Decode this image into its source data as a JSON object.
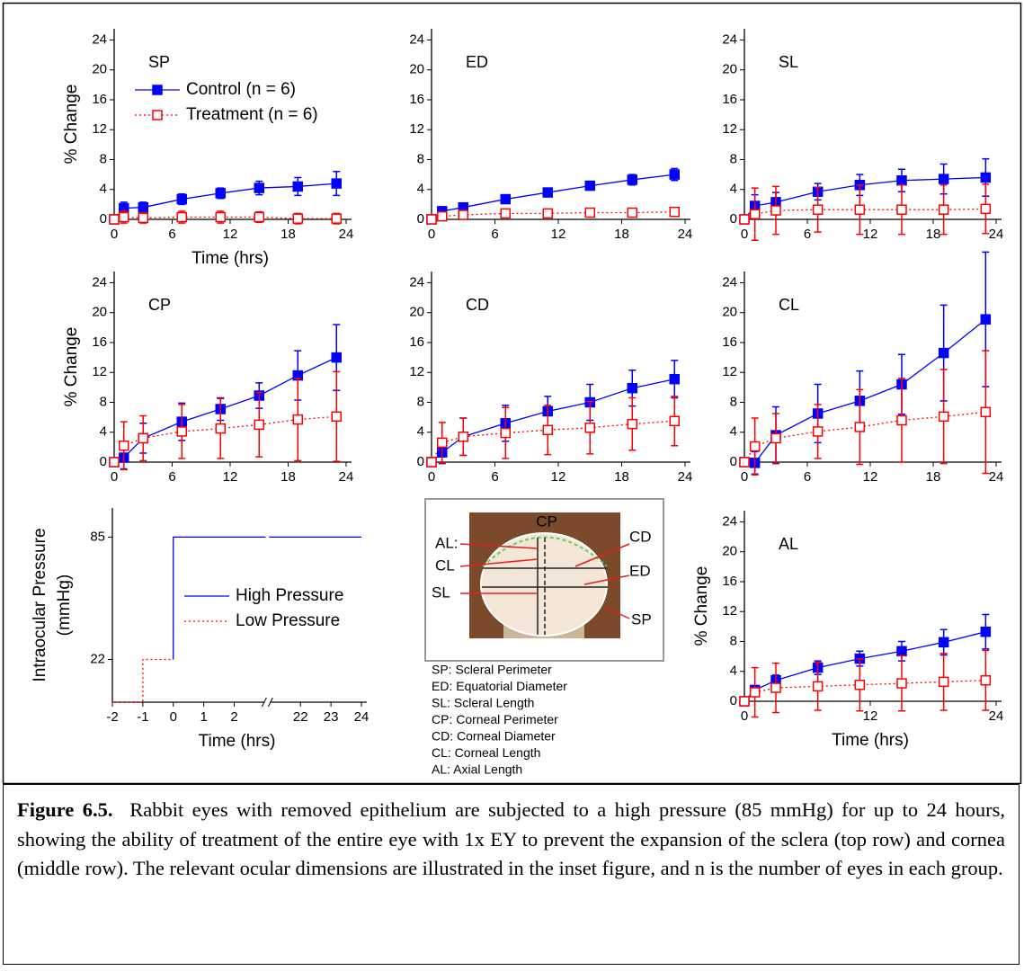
{
  "chart_data": [
    {
      "type": "line",
      "title": "SP",
      "xlabel": "Time (hrs)",
      "ylabel": "% Change",
      "legend": "upper left",
      "x": [
        0,
        1,
        3,
        7,
        11,
        15,
        19,
        23
      ],
      "xlim": [
        0,
        24
      ],
      "xticks": [
        0,
        6,
        12,
        18,
        24
      ],
      "ylim": [
        0,
        25.5
      ],
      "yticks": [
        0,
        4,
        8,
        12,
        16,
        20,
        24
      ],
      "series": [
        {
          "name": "Control (n = 6)",
          "color": "#0000ff",
          "marker": "filled-square",
          "linestyle": "solid",
          "values": [
            0,
            1.5,
            1.6,
            2.7,
            3.5,
            4.2,
            4.4,
            4.8
          ],
          "errors": [
            0,
            0.8,
            0.7,
            0.7,
            0.7,
            0.9,
            1.2,
            1.6
          ]
        },
        {
          "name": "Treatment (n = 6)",
          "color": "#ff0000",
          "marker": "open-square",
          "linestyle": "dotted",
          "values": [
            0,
            0.3,
            0.2,
            0.3,
            0.3,
            0.3,
            0.1,
            0.1
          ],
          "errors": [
            0,
            0.8,
            0.7,
            0.8,
            0.8,
            0.7,
            0.7,
            0.7
          ]
        }
      ]
    },
    {
      "type": "line",
      "title": "ED",
      "x": [
        0,
        1,
        3,
        7,
        11,
        15,
        19,
        23
      ],
      "xlim": [
        0,
        24
      ],
      "xticks": [
        0,
        6,
        12,
        18,
        24
      ],
      "ylim": [
        0,
        25.5
      ],
      "yticks": [
        0,
        4,
        8,
        12,
        16,
        20,
        24
      ],
      "series": [
        {
          "color": "#0000ff",
          "marker": "filled-square",
          "linestyle": "solid",
          "values": [
            0,
            1.1,
            1.6,
            2.7,
            3.6,
            4.5,
            5.3,
            6.0
          ],
          "errors": [
            0,
            0.5,
            0.6,
            0.5,
            0.4,
            0.4,
            0.7,
            0.8
          ]
        },
        {
          "color": "#ff0000",
          "marker": "open-square",
          "linestyle": "dotted",
          "values": [
            0,
            0.4,
            0.6,
            0.8,
            0.8,
            0.9,
            0.9,
            1.0
          ],
          "errors": [
            0,
            0.3,
            0.3,
            0.3,
            0.3,
            0.3,
            0.3,
            0.3
          ]
        }
      ]
    },
    {
      "type": "line",
      "title": "SL",
      "x": [
        0,
        1,
        3,
        7,
        11,
        15,
        19,
        23
      ],
      "xlim": [
        0,
        24
      ],
      "xticks": [
        0,
        6,
        12,
        18,
        24
      ],
      "ylim": [
        0,
        25.5
      ],
      "yticks": [
        0,
        4,
        8,
        12,
        16,
        20,
        24
      ],
      "series": [
        {
          "color": "#0000ff",
          "marker": "filled-square",
          "linestyle": "solid",
          "values": [
            0,
            1.8,
            2.3,
            3.7,
            4.6,
            5.2,
            5.4,
            5.6
          ],
          "errors": [
            0,
            1.5,
            1.3,
            1.1,
            1.4,
            1.5,
            2.0,
            2.5
          ]
        },
        {
          "color": "#ff0000",
          "marker": "open-square",
          "linestyle": "dotted",
          "values": [
            0,
            0.7,
            1.2,
            1.3,
            1.3,
            1.3,
            1.3,
            1.4
          ],
          "errors": [
            0,
            3.5,
            3.2,
            3.0,
            3.3,
            3.3,
            3.3,
            3.3
          ]
        }
      ]
    },
    {
      "type": "line",
      "title": "CP",
      "ylabel": "% Change",
      "x": [
        0,
        1,
        3,
        7,
        11,
        15,
        19,
        23
      ],
      "xlim": [
        0,
        24
      ],
      "xticks": [
        0,
        6,
        12,
        18,
        24
      ],
      "ylim": [
        0,
        25.5
      ],
      "yticks": [
        0,
        4,
        8,
        12,
        16,
        20,
        24
      ],
      "series": [
        {
          "color": "#0000ff",
          "marker": "filled-square",
          "linestyle": "solid",
          "values": [
            0,
            0.6,
            3.2,
            5.4,
            7.1,
            8.9,
            11.6,
            14.0
          ],
          "errors": [
            0,
            1.5,
            2.0,
            2.5,
            1.5,
            1.7,
            3.3,
            4.4
          ]
        },
        {
          "color": "#ff0000",
          "marker": "open-square",
          "linestyle": "dotted",
          "values": [
            0,
            2.2,
            3.2,
            4.1,
            4.5,
            5.0,
            5.7,
            6.1
          ],
          "errors": [
            0,
            3.2,
            3.0,
            3.6,
            4.0,
            4.3,
            5.5,
            6.0
          ]
        }
      ]
    },
    {
      "type": "line",
      "title": "CD",
      "x": [
        0,
        1,
        3,
        7,
        11,
        15,
        19,
        23
      ],
      "xlim": [
        0,
        24
      ],
      "xticks": [
        0,
        6,
        12,
        18,
        24
      ],
      "ylim": [
        0,
        25.5
      ],
      "yticks": [
        0,
        4,
        8,
        12,
        16,
        20,
        24
      ],
      "series": [
        {
          "color": "#0000ff",
          "marker": "filled-square",
          "linestyle": "solid",
          "values": [
            0,
            1.3,
            3.4,
            5.2,
            6.8,
            8.0,
            9.9,
            11.1
          ],
          "errors": [
            0,
            1.5,
            2.5,
            2.4,
            2.0,
            2.4,
            2.4,
            2.5
          ]
        },
        {
          "color": "#ff0000",
          "marker": "open-square",
          "linestyle": "dotted",
          "values": [
            0,
            2.6,
            3.4,
            3.9,
            4.3,
            4.6,
            5.1,
            5.5
          ],
          "errors": [
            0,
            2.7,
            2.5,
            3.4,
            3.3,
            3.5,
            3.5,
            3.3
          ]
        }
      ]
    },
    {
      "type": "line",
      "title": "CL",
      "x": [
        0,
        1,
        3,
        7,
        11,
        15,
        19,
        23
      ],
      "xlim": [
        0,
        24
      ],
      "xticks": [
        0,
        6,
        12,
        18,
        24
      ],
      "ylim": [
        0,
        25.5
      ],
      "yticks": [
        0,
        4,
        8,
        12,
        16,
        20,
        24
      ],
      "series": [
        {
          "color": "#0000ff",
          "marker": "filled-square",
          "linestyle": "solid",
          "values": [
            0,
            -0.1,
            3.6,
            6.5,
            8.2,
            10.4,
            14.6,
            19.1
          ],
          "errors": [
            0,
            1.5,
            3.8,
            3.9,
            4.0,
            4.0,
            6.4,
            9.0
          ]
        },
        {
          "color": "#ff0000",
          "marker": "open-square",
          "linestyle": "dotted",
          "values": [
            0,
            2.1,
            3.2,
            4.1,
            4.7,
            5.6,
            6.1,
            6.7
          ],
          "errors": [
            0,
            3.8,
            3.3,
            3.6,
            5.0,
            5.6,
            6.3,
            8.2
          ]
        }
      ]
    },
    {
      "type": "line",
      "xlabel": "Time (hrs)",
      "ylabel": [
        "Intraocular Pressure",
        "(mmHg)"
      ],
      "legend": "center",
      "xlim": [
        -2,
        24
      ],
      "xbreak": [
        3,
        21
      ],
      "xticks": [
        -2,
        -1,
        0,
        1,
        2,
        22,
        23,
        24
      ],
      "ylim": [
        0,
        100
      ],
      "yticks": [
        22,
        85
      ],
      "series": [
        {
          "name": "High Pressure",
          "color": "#0000ff",
          "linestyle": "solid",
          "x": [
            0,
            0,
            24
          ],
          "values": [
            22,
            85,
            85
          ]
        },
        {
          "name": "Low Pressure",
          "color": "#ff0000",
          "linestyle": "dotted",
          "x": [
            -2,
            -1,
            -1,
            0
          ],
          "values": [
            0,
            0,
            22,
            22
          ]
        }
      ]
    },
    {
      "type": "line",
      "title": "AL",
      "xlabel": "Time (hrs)",
      "ylabel": "% Change",
      "x": [
        0,
        1,
        3,
        7,
        11,
        15,
        19,
        23
      ],
      "xlim": [
        0,
        24
      ],
      "xticks": [
        0,
        12,
        24
      ],
      "ylim": [
        0,
        25.5
      ],
      "yticks": [
        0,
        4,
        8,
        12,
        16,
        20,
        24
      ],
      "series": [
        {
          "color": "#0000ff",
          "marker": "filled-square",
          "linestyle": "solid",
          "values": [
            0,
            1.5,
            2.8,
            4.5,
            5.7,
            6.7,
            7.9,
            9.3
          ],
          "errors": [
            0,
            0.6,
            0.7,
            0.9,
            1.0,
            1.3,
            1.7,
            2.3
          ]
        },
        {
          "color": "#ff0000",
          "marker": "open-square",
          "linestyle": "dotted",
          "values": [
            0,
            1.2,
            1.8,
            2.0,
            2.2,
            2.4,
            2.6,
            2.8
          ],
          "errors": [
            0,
            3.3,
            3.3,
            3.2,
            3.5,
            3.7,
            3.8,
            4.0
          ]
        }
      ]
    }
  ],
  "inset": {
    "labels": [
      "CP",
      "AL:",
      "CL",
      "SL",
      "CD",
      "ED",
      "SP"
    ],
    "legend": [
      "SP: Scleral Perimeter",
      "ED: Equatorial Diameter",
      "SL: Scleral Length",
      "CP: Corneal Perimeter",
      "CD: Corneal Diameter",
      "CL: Corneal Length",
      "AL: Axial Length"
    ]
  },
  "caption": {
    "label": "Figure 6.5.",
    "text": "Rabbit eyes with removed epithelium are subjected to a high pressure (85 mmHg) for up to 24 hours, showing the ability of treatment of the entire eye with 1x EY to prevent the expansion of the sclera (top row) and cornea (middle row).  The relevant ocular dimensions are illustrated in the inset figure, and n is the number of eyes in each group."
  }
}
